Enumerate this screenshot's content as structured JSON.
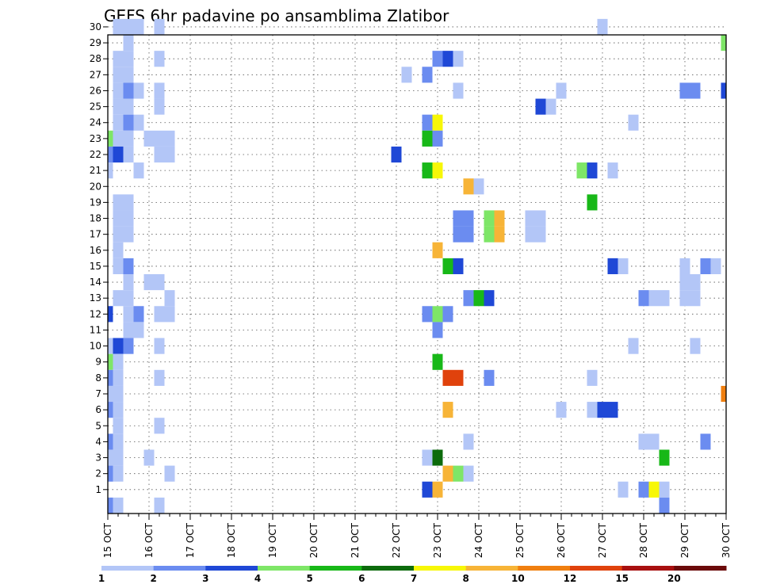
{
  "chart_data": {
    "type": "heatmap",
    "title": "GEFS 6hr padavine po ansamblima Zlatibor",
    "xlabel": "",
    "ylabel": "",
    "x_tick_labels": [
      "15 OCT",
      "16 OCT",
      "17 OCT",
      "18 OCT",
      "19 OCT",
      "20 OCT",
      "21 OCT",
      "22 OCT",
      "23 OCT",
      "24 OCT",
      "25 OCT",
      "26 OCT",
      "27 OCT",
      "28 OCT",
      "29 OCT",
      "30 OCT"
    ],
    "y_tick_labels": [
      "1",
      "2",
      "3",
      "4",
      "5",
      "6",
      "7",
      "8",
      "9",
      "10",
      "11",
      "12",
      "13",
      "14",
      "15",
      "16",
      "17",
      "18",
      "19",
      "20",
      "21",
      "22",
      "23",
      "24",
      "25",
      "26",
      "27",
      "28",
      "29",
      "30"
    ],
    "xlim": [
      "15 OCT 00Z",
      "30 OCT 00Z"
    ],
    "ylim": [
      0,
      30
    ],
    "time_step_hours": 6,
    "grid": "dotted",
    "colorbar": {
      "boundaries": [
        "1",
        "2",
        "3",
        "4",
        "5",
        "6",
        "7",
        "8",
        "10",
        "12",
        "15",
        "20"
      ],
      "colors": [
        "#b3c6f7",
        "#6b8cf0",
        "#1f48d6",
        "#7ee667",
        "#18b818",
        "#0c6b0c",
        "#f7f707",
        "#f7b437",
        "#f07f0f",
        "#e0420c",
        "#a81010",
        "#6b0a0a"
      ]
    },
    "cells": [
      {
        "member": 30,
        "time": "15 OCT 06Z",
        "class": 1
      },
      {
        "member": 30,
        "time": "15 OCT 12Z",
        "class": 1
      },
      {
        "member": 30,
        "time": "15 OCT 18Z",
        "class": 1
      },
      {
        "member": 30,
        "time": "16 OCT 06Z",
        "class": 1
      },
      {
        "member": 30,
        "time": "27 OCT 00Z",
        "class": 1
      },
      {
        "member": 29,
        "time": "15 OCT 12Z",
        "class": 1
      },
      {
        "member": 29,
        "time": "30 OCT 00Z",
        "class": 4
      },
      {
        "member": 28,
        "time": "15 OCT 06Z",
        "class": 1
      },
      {
        "member": 28,
        "time": "15 OCT 12Z",
        "class": 1
      },
      {
        "member": 28,
        "time": "16 OCT 06Z",
        "class": 1
      },
      {
        "member": 28,
        "time": "23 OCT 00Z",
        "class": 2
      },
      {
        "member": 28,
        "time": "23 OCT 06Z",
        "class": 3
      },
      {
        "member": 28,
        "time": "23 OCT 12Z",
        "class": 1
      },
      {
        "member": 27,
        "time": "15 OCT 06Z",
        "class": 1
      },
      {
        "member": 27,
        "time": "15 OCT 12Z",
        "class": 1
      },
      {
        "member": 27,
        "time": "22 OCT 06Z",
        "class": 1
      },
      {
        "member": 27,
        "time": "22 OCT 18Z",
        "class": 2
      },
      {
        "member": 26,
        "time": "15 OCT 06Z",
        "class": 1
      },
      {
        "member": 26,
        "time": "15 OCT 12Z",
        "class": 2
      },
      {
        "member": 26,
        "time": "15 OCT 18Z",
        "class": 1
      },
      {
        "member": 26,
        "time": "16 OCT 06Z",
        "class": 1
      },
      {
        "member": 26,
        "time": "23 OCT 12Z",
        "class": 1
      },
      {
        "member": 26,
        "time": "26 OCT 00Z",
        "class": 1
      },
      {
        "member": 26,
        "time": "29 OCT 00Z",
        "class": 2
      },
      {
        "member": 26,
        "time": "29 OCT 06Z",
        "class": 2
      },
      {
        "member": 26,
        "time": "30 OCT 00Z",
        "class": 3
      },
      {
        "member": 25,
        "time": "15 OCT 06Z",
        "class": 1
      },
      {
        "member": 25,
        "time": "15 OCT 12Z",
        "class": 1
      },
      {
        "member": 25,
        "time": "16 OCT 06Z",
        "class": 1
      },
      {
        "member": 25,
        "time": "25 OCT 12Z",
        "class": 3
      },
      {
        "member": 25,
        "time": "25 OCT 18Z",
        "class": 1
      },
      {
        "member": 24,
        "time": "15 OCT 06Z",
        "class": 1
      },
      {
        "member": 24,
        "time": "15 OCT 12Z",
        "class": 2
      },
      {
        "member": 24,
        "time": "15 OCT 18Z",
        "class": 1
      },
      {
        "member": 24,
        "time": "22 OCT 18Z",
        "class": 2
      },
      {
        "member": 24,
        "time": "23 OCT 00Z",
        "class": 7
      },
      {
        "member": 24,
        "time": "27 OCT 18Z",
        "class": 1
      },
      {
        "member": 23,
        "time": "15 OCT 00Z",
        "class": 4
      },
      {
        "member": 23,
        "time": "15 OCT 06Z",
        "class": 1
      },
      {
        "member": 23,
        "time": "15 OCT 12Z",
        "class": 1
      },
      {
        "member": 23,
        "time": "16 OCT 00Z",
        "class": 1
      },
      {
        "member": 23,
        "time": "16 OCT 06Z",
        "class": 1
      },
      {
        "member": 23,
        "time": "16 OCT 12Z",
        "class": 1
      },
      {
        "member": 23,
        "time": "22 OCT 18Z",
        "class": 5
      },
      {
        "member": 23,
        "time": "23 OCT 00Z",
        "class": 2
      },
      {
        "member": 22,
        "time": "15 OCT 00Z",
        "class": 2
      },
      {
        "member": 22,
        "time": "15 OCT 06Z",
        "class": 3
      },
      {
        "member": 22,
        "time": "15 OCT 12Z",
        "class": 1
      },
      {
        "member": 22,
        "time": "16 OCT 06Z",
        "class": 1
      },
      {
        "member": 22,
        "time": "16 OCT 12Z",
        "class": 1
      },
      {
        "member": 22,
        "time": "22 OCT 00Z",
        "class": 3
      },
      {
        "member": 21,
        "time": "15 OCT 00Z",
        "class": 1
      },
      {
        "member": 21,
        "time": "15 OCT 18Z",
        "class": 1
      },
      {
        "member": 21,
        "time": "22 OCT 18Z",
        "class": 5
      },
      {
        "member": 21,
        "time": "23 OCT 00Z",
        "class": 7
      },
      {
        "member": 21,
        "time": "26 OCT 12Z",
        "class": 4
      },
      {
        "member": 21,
        "time": "26 OCT 18Z",
        "class": 3
      },
      {
        "member": 21,
        "time": "27 OCT 06Z",
        "class": 1
      },
      {
        "member": 20,
        "time": "23 OCT 18Z",
        "class": 8
      },
      {
        "member": 20,
        "time": "24 OCT 00Z",
        "class": 1
      },
      {
        "member": 19,
        "time": "15 OCT 06Z",
        "class": 1
      },
      {
        "member": 19,
        "time": "15 OCT 12Z",
        "class": 1
      },
      {
        "member": 19,
        "time": "26 OCT 18Z",
        "class": 5
      },
      {
        "member": 18,
        "time": "15 OCT 06Z",
        "class": 1
      },
      {
        "member": 18,
        "time": "15 OCT 12Z",
        "class": 1
      },
      {
        "member": 18,
        "time": "23 OCT 12Z",
        "class": 2
      },
      {
        "member": 18,
        "time": "23 OCT 18Z",
        "class": 2
      },
      {
        "member": 18,
        "time": "24 OCT 06Z",
        "class": 4
      },
      {
        "member": 18,
        "time": "24 OCT 12Z",
        "class": 8
      },
      {
        "member": 18,
        "time": "25 OCT 06Z",
        "class": 1
      },
      {
        "member": 18,
        "time": "25 OCT 12Z",
        "class": 1
      },
      {
        "member": 17,
        "time": "15 OCT 06Z",
        "class": 1
      },
      {
        "member": 17,
        "time": "15 OCT 12Z",
        "class": 1
      },
      {
        "member": 17,
        "time": "23 OCT 12Z",
        "class": 2
      },
      {
        "member": 17,
        "time": "23 OCT 18Z",
        "class": 2
      },
      {
        "member": 17,
        "time": "24 OCT 06Z",
        "class": 4
      },
      {
        "member": 17,
        "time": "24 OCT 12Z",
        "class": 8
      },
      {
        "member": 17,
        "time": "25 OCT 06Z",
        "class": 1
      },
      {
        "member": 17,
        "time": "25 OCT 12Z",
        "class": 1
      },
      {
        "member": 16,
        "time": "15 OCT 06Z",
        "class": 1
      },
      {
        "member": 16,
        "time": "23 OCT 00Z",
        "class": 8
      },
      {
        "member": 15,
        "time": "15 OCT 06Z",
        "class": 1
      },
      {
        "member": 15,
        "time": "15 OCT 12Z",
        "class": 2
      },
      {
        "member": 15,
        "time": "23 OCT 06Z",
        "class": 5
      },
      {
        "member": 15,
        "time": "23 OCT 12Z",
        "class": 3
      },
      {
        "member": 15,
        "time": "27 OCT 06Z",
        "class": 3
      },
      {
        "member": 15,
        "time": "27 OCT 12Z",
        "class": 1
      },
      {
        "member": 15,
        "time": "29 OCT 00Z",
        "class": 1
      },
      {
        "member": 15,
        "time": "29 OCT 12Z",
        "class": 2
      },
      {
        "member": 15,
        "time": "29 OCT 18Z",
        "class": 1
      },
      {
        "member": 14,
        "time": "15 OCT 12Z",
        "class": 1
      },
      {
        "member": 14,
        "time": "16 OCT 00Z",
        "class": 1
      },
      {
        "member": 14,
        "time": "16 OCT 06Z",
        "class": 1
      },
      {
        "member": 14,
        "time": "29 OCT 00Z",
        "class": 1
      },
      {
        "member": 14,
        "time": "29 OCT 06Z",
        "class": 1
      },
      {
        "member": 13,
        "time": "15 OCT 06Z",
        "class": 1
      },
      {
        "member": 13,
        "time": "15 OCT 12Z",
        "class": 1
      },
      {
        "member": 13,
        "time": "16 OCT 12Z",
        "class": 1
      },
      {
        "member": 13,
        "time": "23 OCT 18Z",
        "class": 2
      },
      {
        "member": 13,
        "time": "24 OCT 00Z",
        "class": 5
      },
      {
        "member": 13,
        "time": "24 OCT 06Z",
        "class": 3
      },
      {
        "member": 13,
        "time": "28 OCT 00Z",
        "class": 2
      },
      {
        "member": 13,
        "time": "28 OCT 06Z",
        "class": 1
      },
      {
        "member": 13,
        "time": "28 OCT 12Z",
        "class": 1
      },
      {
        "member": 13,
        "time": "29 OCT 00Z",
        "class": 1
      },
      {
        "member": 13,
        "time": "29 OCT 06Z",
        "class": 1
      },
      {
        "member": 12,
        "time": "15 OCT 00Z",
        "class": 3
      },
      {
        "member": 12,
        "time": "15 OCT 12Z",
        "class": 1
      },
      {
        "member": 12,
        "time": "15 OCT 18Z",
        "class": 2
      },
      {
        "member": 12,
        "time": "16 OCT 06Z",
        "class": 1
      },
      {
        "member": 12,
        "time": "16 OCT 12Z",
        "class": 1
      },
      {
        "member": 12,
        "time": "22 OCT 18Z",
        "class": 2
      },
      {
        "member": 12,
        "time": "23 OCT 00Z",
        "class": 4
      },
      {
        "member": 12,
        "time": "23 OCT 06Z",
        "class": 2
      },
      {
        "member": 11,
        "time": "15 OCT 12Z",
        "class": 1
      },
      {
        "member": 11,
        "time": "15 OCT 18Z",
        "class": 1
      },
      {
        "member": 11,
        "time": "23 OCT 00Z",
        "class": 2
      },
      {
        "member": 10,
        "time": "15 OCT 00Z",
        "class": 1
      },
      {
        "member": 10,
        "time": "15 OCT 06Z",
        "class": 3
      },
      {
        "member": 10,
        "time": "15 OCT 12Z",
        "class": 2
      },
      {
        "member": 10,
        "time": "16 OCT 06Z",
        "class": 1
      },
      {
        "member": 10,
        "time": "27 OCT 18Z",
        "class": 1
      },
      {
        "member": 10,
        "time": "29 OCT 06Z",
        "class": 1
      },
      {
        "member": 9,
        "time": "15 OCT 00Z",
        "class": 4
      },
      {
        "member": 9,
        "time": "15 OCT 06Z",
        "class": 1
      },
      {
        "member": 9,
        "time": "23 OCT 00Z",
        "class": 5
      },
      {
        "member": 8,
        "time": "15 OCT 00Z",
        "class": 2
      },
      {
        "member": 8,
        "time": "15 OCT 06Z",
        "class": 1
      },
      {
        "member": 8,
        "time": "16 OCT 06Z",
        "class": 1
      },
      {
        "member": 8,
        "time": "23 OCT 06Z",
        "class": 10
      },
      {
        "member": 8,
        "time": "23 OCT 12Z",
        "class": 10
      },
      {
        "member": 8,
        "time": "24 OCT 06Z",
        "class": 2
      },
      {
        "member": 8,
        "time": "26 OCT 18Z",
        "class": 1
      },
      {
        "member": 7,
        "time": "15 OCT 00Z",
        "class": 1
      },
      {
        "member": 7,
        "time": "15 OCT 06Z",
        "class": 1
      },
      {
        "member": 7,
        "time": "30 OCT 00Z",
        "class": 9
      },
      {
        "member": 6,
        "time": "15 OCT 00Z",
        "class": 2
      },
      {
        "member": 6,
        "time": "15 OCT 06Z",
        "class": 1
      },
      {
        "member": 6,
        "time": "23 OCT 06Z",
        "class": 8
      },
      {
        "member": 6,
        "time": "26 OCT 00Z",
        "class": 1
      },
      {
        "member": 6,
        "time": "26 OCT 18Z",
        "class": 1
      },
      {
        "member": 6,
        "time": "27 OCT 00Z",
        "class": 3
      },
      {
        "member": 6,
        "time": "27 OCT 06Z",
        "class": 3
      },
      {
        "member": 5,
        "time": "15 OCT 06Z",
        "class": 1
      },
      {
        "member": 5,
        "time": "16 OCT 06Z",
        "class": 1
      },
      {
        "member": 4,
        "time": "15 OCT 00Z",
        "class": 2
      },
      {
        "member": 4,
        "time": "15 OCT 06Z",
        "class": 1
      },
      {
        "member": 4,
        "time": "23 OCT 18Z",
        "class": 1
      },
      {
        "member": 4,
        "time": "28 OCT 00Z",
        "class": 1
      },
      {
        "member": 4,
        "time": "28 OCT 06Z",
        "class": 1
      },
      {
        "member": 4,
        "time": "29 OCT 12Z",
        "class": 2
      },
      {
        "member": 3,
        "time": "15 OCT 00Z",
        "class": 1
      },
      {
        "member": 3,
        "time": "15 OCT 06Z",
        "class": 1
      },
      {
        "member": 3,
        "time": "16 OCT 00Z",
        "class": 1
      },
      {
        "member": 3,
        "time": "22 OCT 18Z",
        "class": 1
      },
      {
        "member": 3,
        "time": "23 OCT 00Z",
        "class": 6
      },
      {
        "member": 3,
        "time": "28 OCT 12Z",
        "class": 5
      },
      {
        "member": 2,
        "time": "15 OCT 00Z",
        "class": 2
      },
      {
        "member": 2,
        "time": "15 OCT 06Z",
        "class": 1
      },
      {
        "member": 2,
        "time": "16 OCT 12Z",
        "class": 1
      },
      {
        "member": 2,
        "time": "23 OCT 06Z",
        "class": 8
      },
      {
        "member": 2,
        "time": "23 OCT 12Z",
        "class": 4
      },
      {
        "member": 2,
        "time": "23 OCT 18Z",
        "class": 1
      },
      {
        "member": 1,
        "time": "22 OCT 18Z",
        "class": 3
      },
      {
        "member": 1,
        "time": "23 OCT 00Z",
        "class": 8
      },
      {
        "member": 1,
        "time": "27 OCT 12Z",
        "class": 1
      },
      {
        "member": 1,
        "time": "28 OCT 00Z",
        "class": 2
      },
      {
        "member": 1,
        "time": "28 OCT 06Z",
        "class": 7
      },
      {
        "member": 1,
        "time": "28 OCT 12Z",
        "class": 1
      },
      {
        "member": 0,
        "time": "15 OCT 00Z",
        "class": 2
      },
      {
        "member": 0,
        "time": "15 OCT 06Z",
        "class": 1
      },
      {
        "member": 0,
        "time": "16 OCT 06Z",
        "class": 1
      },
      {
        "member": 0,
        "time": "28 OCT 12Z",
        "class": 2
      }
    ]
  }
}
